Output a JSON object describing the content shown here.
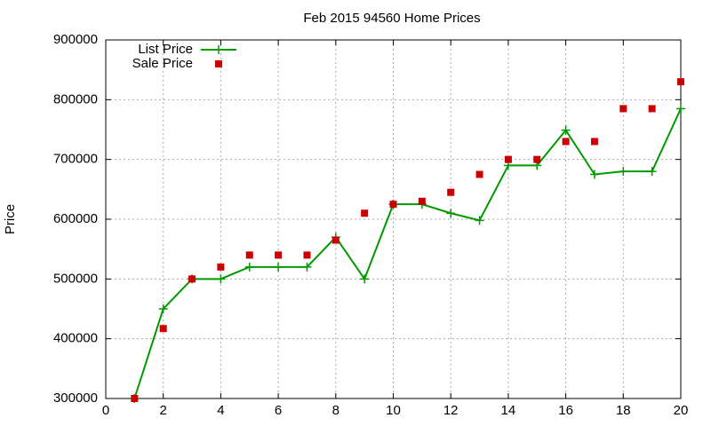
{
  "chart_data": {
    "type": "line",
    "title": "Feb 2015 94560 Home Prices",
    "y_label": "Price",
    "x": [
      1,
      2,
      3,
      4,
      5,
      6,
      7,
      8,
      9,
      10,
      11,
      12,
      13,
      14,
      15,
      16,
      17,
      18,
      19,
      20
    ],
    "series": [
      {
        "name": "List Price",
        "color": "#009900",
        "style": "linespoints",
        "values": [
          300000,
          450000,
          500000,
          500000,
          520000,
          520000,
          520000,
          570000,
          500000,
          625000,
          625000,
          610000,
          598000,
          690000,
          690000,
          749000,
          675000,
          680000,
          680000,
          785000
        ]
      },
      {
        "name": "Sale Price",
        "color": "#cc0000",
        "style": "points",
        "values": [
          300000,
          417000,
          500000,
          520000,
          540000,
          540000,
          540000,
          565000,
          610000,
          625000,
          630000,
          645000,
          675000,
          700000,
          700000,
          730000,
          730000,
          785000,
          785000,
          830000
        ]
      }
    ],
    "xlim": [
      0,
      20
    ],
    "xticks": [
      0,
      2,
      4,
      6,
      8,
      10,
      12,
      14,
      16,
      18,
      20
    ],
    "ylim": [
      300000,
      900000
    ],
    "yticks": [
      300000,
      400000,
      500000,
      600000,
      700000,
      800000,
      900000
    ],
    "grid": true,
    "legend": "top-left"
  }
}
